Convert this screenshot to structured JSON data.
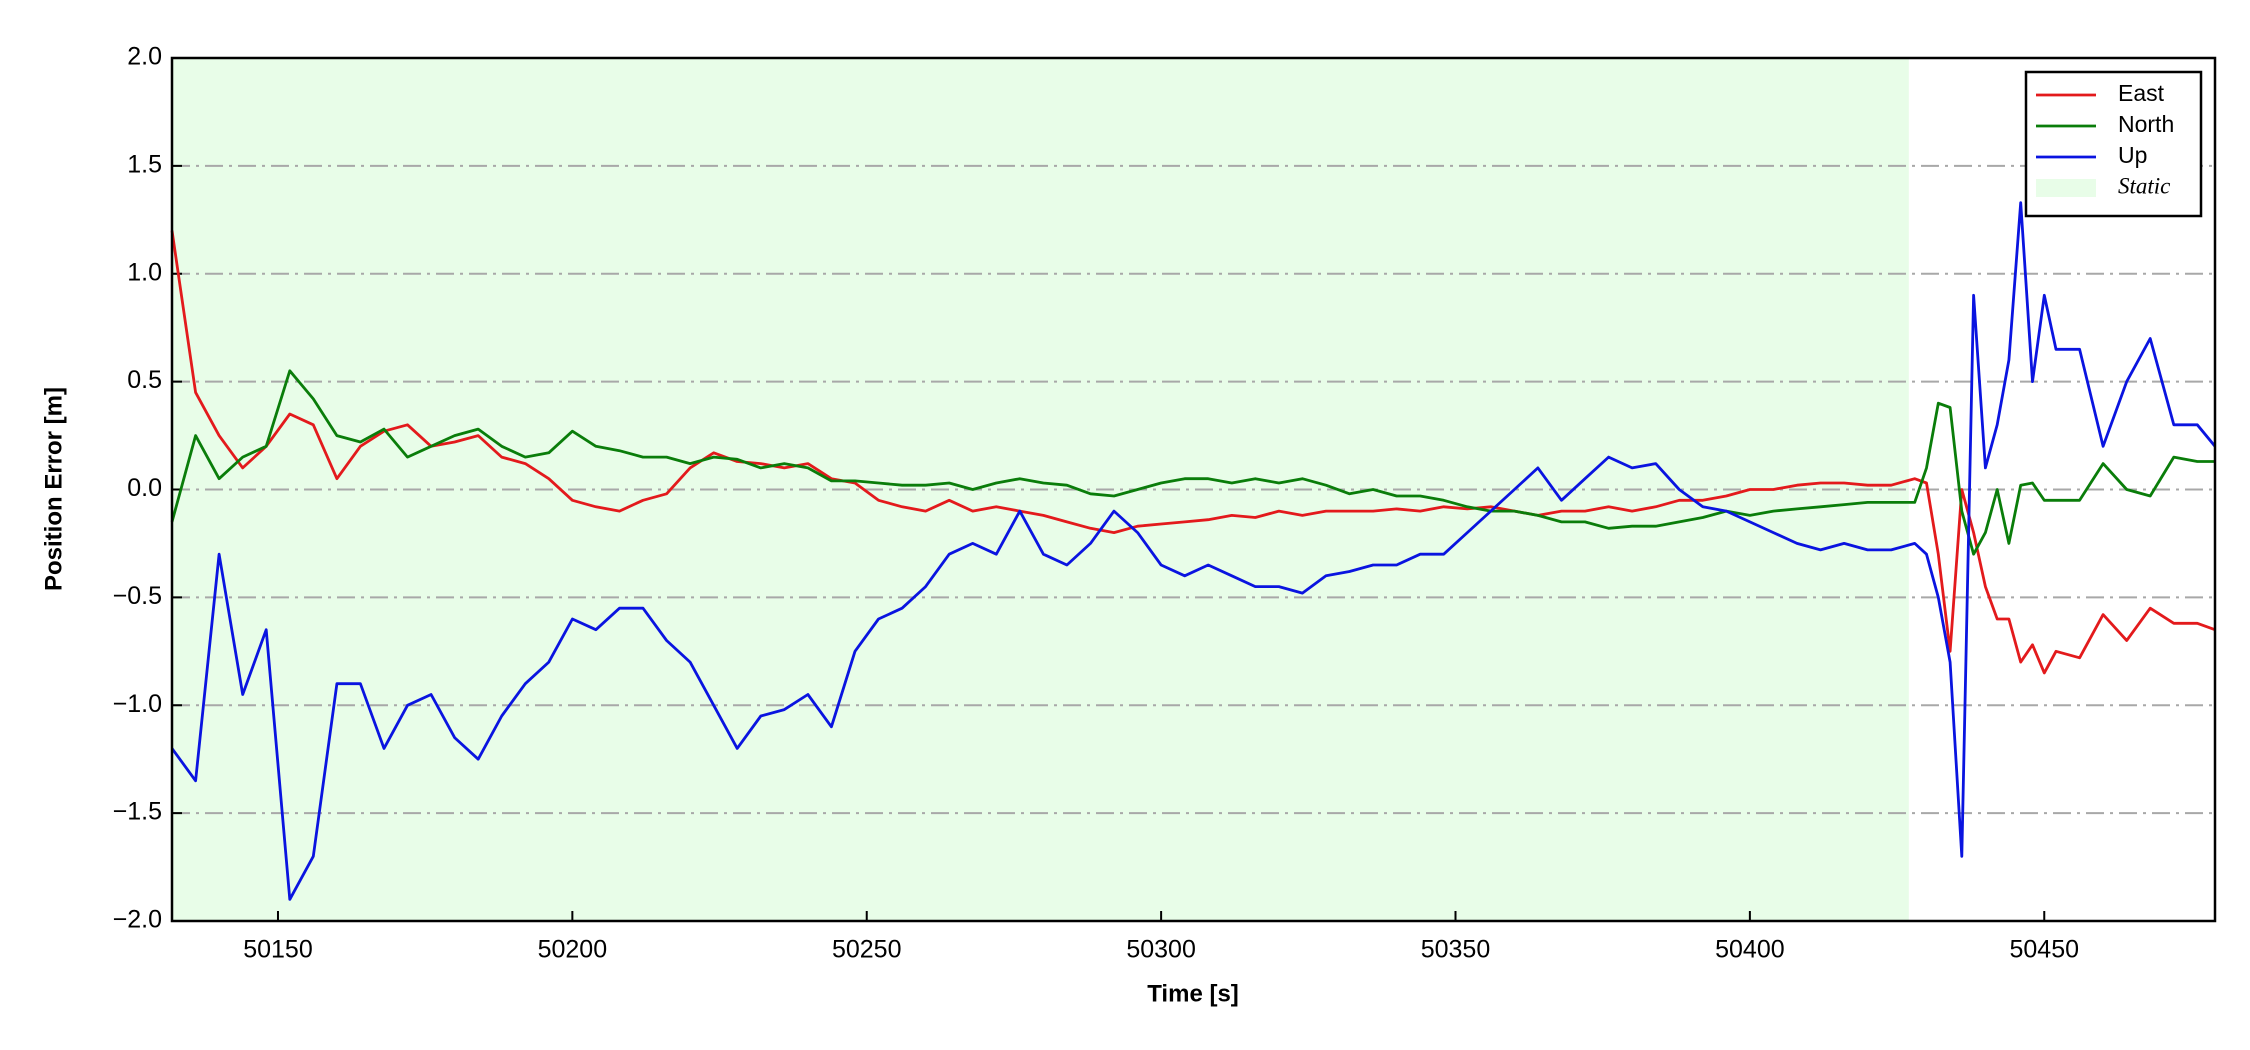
{
  "chart_data": {
    "type": "line",
    "xlabel": "Time [s]",
    "ylabel": "Position Error [m]",
    "x": [
      50132,
      50136,
      50140,
      50144,
      50148,
      50152,
      50156,
      50160,
      50164,
      50168,
      50172,
      50176,
      50180,
      50184,
      50188,
      50192,
      50196,
      50200,
      50204,
      50208,
      50212,
      50216,
      50220,
      50224,
      50228,
      50232,
      50236,
      50240,
      50244,
      50248,
      50252,
      50256,
      50260,
      50264,
      50268,
      50272,
      50276,
      50280,
      50284,
      50288,
      50292,
      50296,
      50300,
      50304,
      50308,
      50312,
      50316,
      50320,
      50324,
      50328,
      50332,
      50336,
      50340,
      50344,
      50348,
      50352,
      50356,
      50360,
      50364,
      50368,
      50372,
      50376,
      50380,
      50384,
      50388,
      50392,
      50396,
      50400,
      50404,
      50408,
      50412,
      50416,
      50420,
      50424,
      50428,
      50430,
      50432,
      50434,
      50436,
      50438,
      50440,
      50442,
      50444,
      50446,
      50448,
      50450,
      50452,
      50456,
      50460,
      50464,
      50468,
      50472,
      50476,
      50479
    ],
    "series": [
      {
        "name": "East",
        "color": "#e31a1c",
        "values": [
          1.2,
          0.45,
          0.25,
          0.1,
          0.2,
          0.35,
          0.3,
          0.05,
          0.2,
          0.27,
          0.3,
          0.2,
          0.22,
          0.25,
          0.15,
          0.12,
          0.05,
          -0.05,
          -0.08,
          -0.1,
          -0.05,
          -0.02,
          0.1,
          0.17,
          0.13,
          0.12,
          0.1,
          0.12,
          0.05,
          0.03,
          -0.05,
          -0.08,
          -0.1,
          -0.05,
          -0.1,
          -0.08,
          -0.1,
          -0.12,
          -0.15,
          -0.18,
          -0.2,
          -0.17,
          -0.16,
          -0.15,
          -0.14,
          -0.12,
          -0.13,
          -0.1,
          -0.12,
          -0.1,
          -0.1,
          -0.1,
          -0.09,
          -0.1,
          -0.08,
          -0.09,
          -0.08,
          -0.1,
          -0.12,
          -0.1,
          -0.1,
          -0.08,
          -0.1,
          -0.08,
          -0.05,
          -0.05,
          -0.03,
          0,
          0,
          0.02,
          0.03,
          0.03,
          0.02,
          0.02,
          0.05,
          0.03,
          -0.3,
          -0.75,
          0,
          -0.2,
          -0.45,
          -0.6,
          -0.6,
          -0.8,
          -0.72,
          -0.85,
          -0.75,
          -0.78,
          -0.58,
          -0.7,
          -0.55,
          -0.62,
          -0.62,
          -0.65
        ]
      },
      {
        "name": "North",
        "color": "#0a7d0a",
        "values": [
          -0.15,
          0.25,
          0.05,
          0.15,
          0.2,
          0.55,
          0.42,
          0.25,
          0.22,
          0.28,
          0.15,
          0.2,
          0.25,
          0.28,
          0.2,
          0.15,
          0.17,
          0.27,
          0.2,
          0.18,
          0.15,
          0.15,
          0.12,
          0.15,
          0.14,
          0.1,
          0.12,
          0.1,
          0.04,
          0.04,
          0.03,
          0.02,
          0.02,
          0.03,
          0,
          0.03,
          0.05,
          0.03,
          0.02,
          -0.02,
          -0.03,
          0,
          0.03,
          0.05,
          0.05,
          0.03,
          0.05,
          0.03,
          0.05,
          0.02,
          -0.02,
          0,
          -0.03,
          -0.03,
          -0.05,
          -0.08,
          -0.1,
          -0.1,
          -0.12,
          -0.15,
          -0.15,
          -0.18,
          -0.17,
          -0.17,
          -0.15,
          -0.13,
          -0.1,
          -0.12,
          -0.1,
          -0.09,
          -0.08,
          -0.07,
          -0.06,
          -0.06,
          -0.06,
          0.1,
          0.4,
          0.38,
          -0.1,
          -0.3,
          -0.2,
          0,
          -0.25,
          0.02,
          0.03,
          -0.05,
          -0.05,
          -0.05,
          0.12,
          0,
          -0.03,
          0.15,
          0.13,
          0.13
        ]
      },
      {
        "name": "Up",
        "color": "#0a14e0",
        "values": [
          -1.2,
          -1.35,
          -0.3,
          -0.95,
          -0.65,
          -1.9,
          -1.7,
          -0.9,
          -0.9,
          -1.2,
          -1.0,
          -0.95,
          -1.15,
          -1.25,
          -1.05,
          -0.9,
          -0.8,
          -0.6,
          -0.65,
          -0.55,
          -0.55,
          -0.7,
          -0.8,
          -1.0,
          -1.2,
          -1.05,
          -1.02,
          -0.95,
          -1.1,
          -0.75,
          -0.6,
          -0.55,
          -0.45,
          -0.3,
          -0.25,
          -0.3,
          -0.1,
          -0.3,
          -0.35,
          -0.25,
          -0.1,
          -0.2,
          -0.35,
          -0.4,
          -0.35,
          -0.4,
          -0.45,
          -0.45,
          -0.48,
          -0.4,
          -0.38,
          -0.35,
          -0.35,
          -0.3,
          -0.3,
          -0.2,
          -0.1,
          0,
          0.1,
          -0.05,
          0.05,
          0.15,
          0.1,
          0.12,
          0,
          -0.08,
          -0.1,
          -0.15,
          -0.2,
          -0.25,
          -0.28,
          -0.25,
          -0.28,
          -0.28,
          -0.25,
          -0.3,
          -0.5,
          -0.8,
          -1.7,
          0.9,
          0.1,
          0.3,
          0.6,
          1.33,
          0.5,
          0.9,
          0.65,
          0.65,
          0.2,
          0.5,
          0.7,
          0.3,
          0.3,
          0.2
        ]
      }
    ],
    "span": {
      "name": "Static",
      "color": "#e8fde8",
      "x": [
        50132,
        50427
      ]
    },
    "xlim": [
      50132,
      50479
    ],
    "ylim": [
      -2,
      2
    ],
    "xticks": [
      50150,
      50200,
      50250,
      50300,
      50350,
      50400,
      50450
    ],
    "yticks": [
      {
        "value": -2,
        "label": "−2.0"
      },
      {
        "value": -1.5,
        "label": "−1.5"
      },
      {
        "value": -1,
        "label": "−1.0"
      },
      {
        "value": -0.5,
        "label": "−0.5"
      },
      {
        "value": 0,
        "label": "0.0"
      },
      0.5,
      {
        "value": 1,
        "label": "1.0"
      },
      1.5,
      {
        "value": 2,
        "label": "2.0"
      }
    ],
    "grid": true,
    "legend": "upper right"
  }
}
